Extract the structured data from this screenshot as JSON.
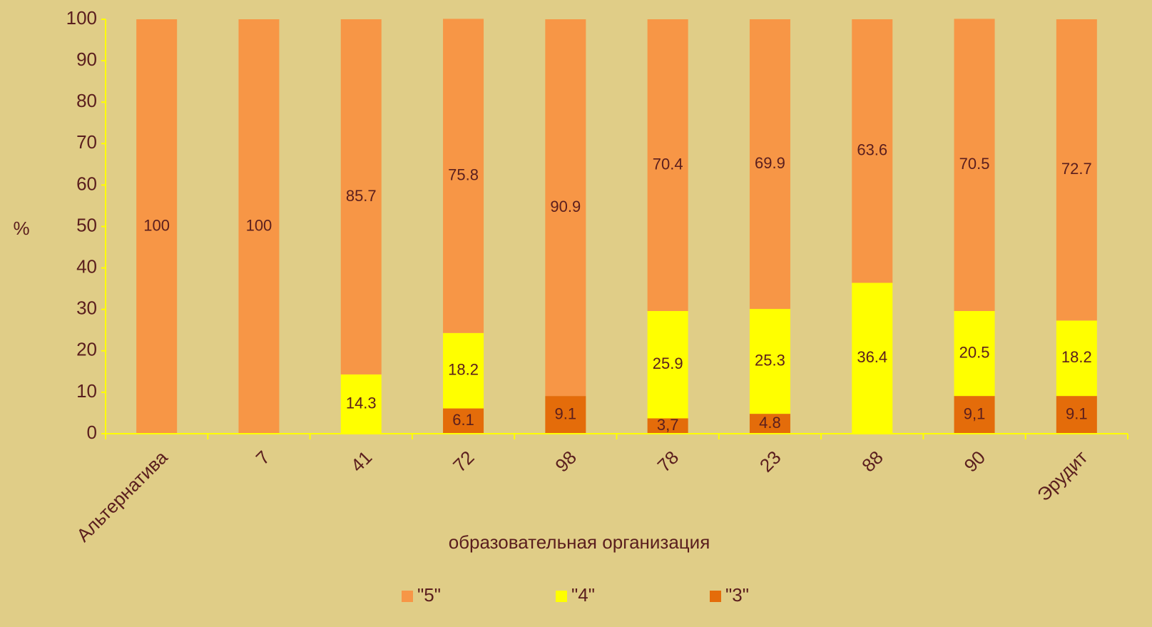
{
  "chart_data": {
    "type": "stacked_bar",
    "x_label": "образовательная организация",
    "y_label": "%",
    "categories": [
      "Альтернатива",
      "7",
      "41",
      "72",
      "98",
      "78",
      "23",
      "88",
      "90",
      "Эрудит"
    ],
    "series": [
      {
        "name": "\"3\"",
        "color": "#e46c0a",
        "values": [
          0,
          0,
          0,
          6.1,
          9.1,
          3.7,
          4.8,
          0,
          9.1,
          9.1
        ],
        "value_labels": [
          null,
          null,
          null,
          "6.1",
          "9.1",
          "3,7",
          "4.8",
          null,
          "9,1",
          "9.1"
        ]
      },
      {
        "name": "\"4\"",
        "color": "#ffff00",
        "values": [
          0,
          0,
          14.3,
          18.2,
          0,
          25.9,
          25.3,
          36.4,
          20.5,
          18.2
        ]
      },
      {
        "name": "\"5\"",
        "color": "#f79646",
        "values": [
          100,
          100,
          85.7,
          75.8,
          90.9,
          70.4,
          69.9,
          63.6,
          70.5,
          72.7
        ]
      }
    ],
    "legend_order": [
      2,
      1,
      0
    ],
    "ylim": [
      0,
      100
    ],
    "yticks": [
      0,
      10,
      20,
      30,
      40,
      50,
      60,
      70,
      80,
      90,
      100
    ],
    "axis_color": "#ffff00"
  }
}
